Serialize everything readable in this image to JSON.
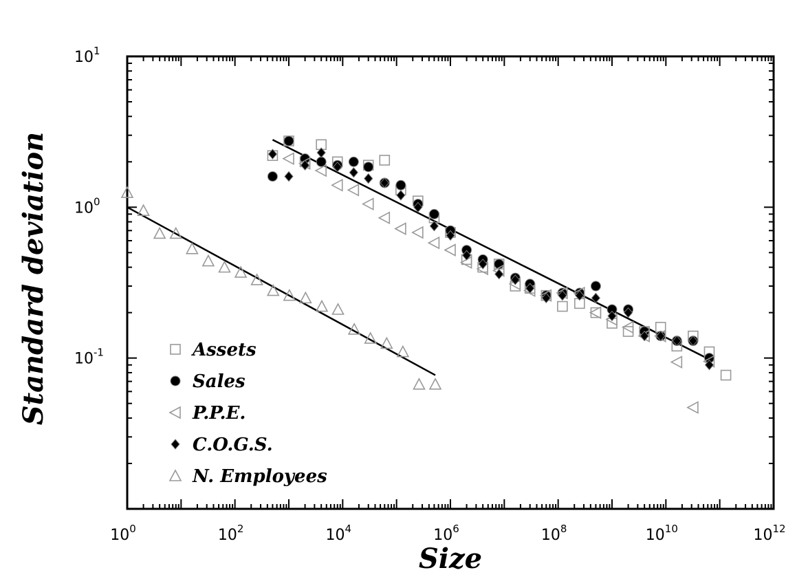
{
  "chart_data": {
    "type": "scatter",
    "xlabel": "Size",
    "ylabel": "Standard deviation",
    "x_scale": "log",
    "y_scale": "log",
    "xlim": [
      1,
      1000000000000
    ],
    "ylim": [
      0.01,
      10
    ],
    "x_ticks": [
      {
        "base": "10",
        "exp": "0",
        "value": 1
      },
      {
        "base": "10",
        "exp": "2",
        "value": 100
      },
      {
        "base": "10",
        "exp": "4",
        "value": 10000
      },
      {
        "base": "10",
        "exp": "6",
        "value": 1000000
      },
      {
        "base": "10",
        "exp": "8",
        "value": 100000000
      },
      {
        "base": "10",
        "exp": "10",
        "value": 10000000000
      },
      {
        "base": "10",
        "exp": "12",
        "value": 1000000000000
      }
    ],
    "y_ticks": [
      {
        "base": "10",
        "exp": "-1",
        "value": 0.1
      },
      {
        "base": "10",
        "exp": "0",
        "value": 1
      },
      {
        "base": "10",
        "exp": "1",
        "value": 10
      }
    ],
    "grid": false,
    "legend_position": "bottom-left inside",
    "series": [
      {
        "name": "Assets",
        "marker": "open-square",
        "color": "#999999",
        "points": [
          [
            500,
            2.2
          ],
          [
            1000,
            2.75
          ],
          [
            2000,
            2.0
          ],
          [
            4000,
            2.6
          ],
          [
            8000,
            2.0
          ],
          [
            30000,
            1.9
          ],
          [
            60000,
            2.05
          ],
          [
            120000,
            1.3
          ],
          [
            250000,
            1.1
          ],
          [
            500000,
            0.85
          ],
          [
            1000000,
            0.68
          ],
          [
            2000000,
            0.45
          ],
          [
            4000000,
            0.4
          ],
          [
            8000000,
            0.42
          ],
          [
            16000000,
            0.3
          ],
          [
            30000000,
            0.29
          ],
          [
            60000000,
            0.26
          ],
          [
            120000000,
            0.22
          ],
          [
            250000000,
            0.23
          ],
          [
            500000000,
            0.2
          ],
          [
            1000000000,
            0.17
          ],
          [
            2000000000,
            0.15
          ],
          [
            4000000000,
            0.15
          ],
          [
            8000000000,
            0.16
          ],
          [
            16000000000,
            0.12
          ],
          [
            32000000000,
            0.14
          ],
          [
            64000000000,
            0.11
          ],
          [
            130000000000,
            0.077
          ]
        ]
      },
      {
        "name": "Sales",
        "marker": "filled-circle",
        "color": "#000000",
        "points": [
          [
            500,
            1.6
          ],
          [
            1000,
            2.75
          ],
          [
            2000,
            2.1
          ],
          [
            4000,
            2.0
          ],
          [
            8000,
            1.9
          ],
          [
            16000,
            2.0
          ],
          [
            30000,
            1.85
          ],
          [
            60000,
            1.45
          ],
          [
            120000,
            1.4
          ],
          [
            250000,
            1.05
          ],
          [
            500000,
            0.9
          ],
          [
            1000000,
            0.7
          ],
          [
            2000000,
            0.52
          ],
          [
            4000000,
            0.45
          ],
          [
            8000000,
            0.42
          ],
          [
            16000000,
            0.34
          ],
          [
            30000000,
            0.31
          ],
          [
            60000000,
            0.26
          ],
          [
            120000000,
            0.27
          ],
          [
            250000000,
            0.27
          ],
          [
            500000000,
            0.3
          ],
          [
            1000000000,
            0.21
          ],
          [
            2000000000,
            0.21
          ],
          [
            4000000000,
            0.15
          ],
          [
            8000000000,
            0.14
          ],
          [
            16000000000,
            0.13
          ],
          [
            32000000000,
            0.13
          ],
          [
            64000000000,
            0.1
          ]
        ]
      },
      {
        "name": "P.P.E.",
        "marker": "open-left-triangle",
        "color": "#999999",
        "points": [
          [
            1000,
            2.1
          ],
          [
            2000,
            1.95
          ],
          [
            4000,
            1.75
          ],
          [
            8000,
            1.4
          ],
          [
            16000,
            1.3
          ],
          [
            30000,
            1.05
          ],
          [
            60000,
            0.85
          ],
          [
            120000,
            0.72
          ],
          [
            250000,
            0.68
          ],
          [
            500000,
            0.58
          ],
          [
            1000000,
            0.52
          ],
          [
            2000000,
            0.43
          ],
          [
            4000000,
            0.39
          ],
          [
            8000000,
            0.38
          ],
          [
            16000000,
            0.31
          ],
          [
            30000000,
            0.28
          ],
          [
            60000000,
            0.26
          ],
          [
            120000000,
            0.27
          ],
          [
            250000000,
            0.27
          ],
          [
            500000000,
            0.2
          ],
          [
            1000000000,
            0.18
          ],
          [
            2000000000,
            0.16
          ],
          [
            4000000000,
            0.14
          ],
          [
            8000000000,
            0.14
          ],
          [
            16000000000,
            0.094
          ],
          [
            32000000000,
            0.047
          ],
          [
            64000000000,
            0.095
          ]
        ]
      },
      {
        "name": "C.O.G.S.",
        "marker": "filled-diamond",
        "color": "#000000",
        "points": [
          [
            500,
            2.25
          ],
          [
            1000,
            1.6
          ],
          [
            2000,
            1.9
          ],
          [
            4000,
            2.3
          ],
          [
            8000,
            1.85
          ],
          [
            16000,
            1.7
          ],
          [
            30000,
            1.55
          ],
          [
            60000,
            1.45
          ],
          [
            120000,
            1.2
          ],
          [
            250000,
            1.0
          ],
          [
            500000,
            0.75
          ],
          [
            1000000,
            0.65
          ],
          [
            2000000,
            0.48
          ],
          [
            4000000,
            0.42
          ],
          [
            8000000,
            0.36
          ],
          [
            16000000,
            0.33
          ],
          [
            30000000,
            0.29
          ],
          [
            60000000,
            0.25
          ],
          [
            120000000,
            0.26
          ],
          [
            250000000,
            0.26
          ],
          [
            500000000,
            0.25
          ],
          [
            1000000000,
            0.19
          ],
          [
            2000000000,
            0.2
          ],
          [
            4000000000,
            0.14
          ],
          [
            8000000000,
            0.14
          ],
          [
            16000000000,
            0.13
          ],
          [
            32000000000,
            0.13
          ],
          [
            64000000000,
            0.09
          ]
        ]
      },
      {
        "name": "N. Employees",
        "marker": "open-up-triangle",
        "color": "#999999",
        "points": [
          [
            1,
            1.25
          ],
          [
            2,
            0.95
          ],
          [
            4,
            0.67
          ],
          [
            8,
            0.67
          ],
          [
            16,
            0.53
          ],
          [
            32,
            0.44
          ],
          [
            64,
            0.4
          ],
          [
            128,
            0.37
          ],
          [
            256,
            0.33
          ],
          [
            512,
            0.28
          ],
          [
            1024,
            0.26
          ],
          [
            2048,
            0.25
          ],
          [
            4096,
            0.22
          ],
          [
            8192,
            0.21
          ],
          [
            16384,
            0.155
          ],
          [
            32768,
            0.135
          ],
          [
            65536,
            0.125
          ],
          [
            131072,
            0.11
          ],
          [
            262144,
            0.067
          ],
          [
            524288,
            0.067
          ]
        ]
      }
    ],
    "fit_lines": [
      {
        "x": [
          500,
          64000000000
        ],
        "y": [
          2.8,
          0.098
        ],
        "color": "#000000"
      },
      {
        "x": [
          1,
          524288
        ],
        "y": [
          1.0,
          0.077
        ],
        "color": "#000000"
      }
    ]
  }
}
